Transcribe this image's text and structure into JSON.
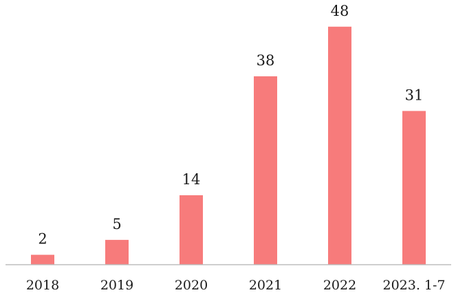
{
  "chart_data": {
    "type": "bar",
    "categories": [
      "2018",
      "2019",
      "2020",
      "2021",
      "2022",
      "2023. 1-7"
    ],
    "values": [
      2,
      5,
      14,
      38,
      48,
      31
    ],
    "data_labels": [
      "2",
      "5",
      "14",
      "38",
      "48",
      "31"
    ],
    "ylim": [
      0,
      52
    ],
    "grid": false,
    "legend": "none",
    "colors": {
      "bar": "#f77b7b",
      "axis": "#bdbdbd",
      "text": "#1a1a1a"
    }
  }
}
